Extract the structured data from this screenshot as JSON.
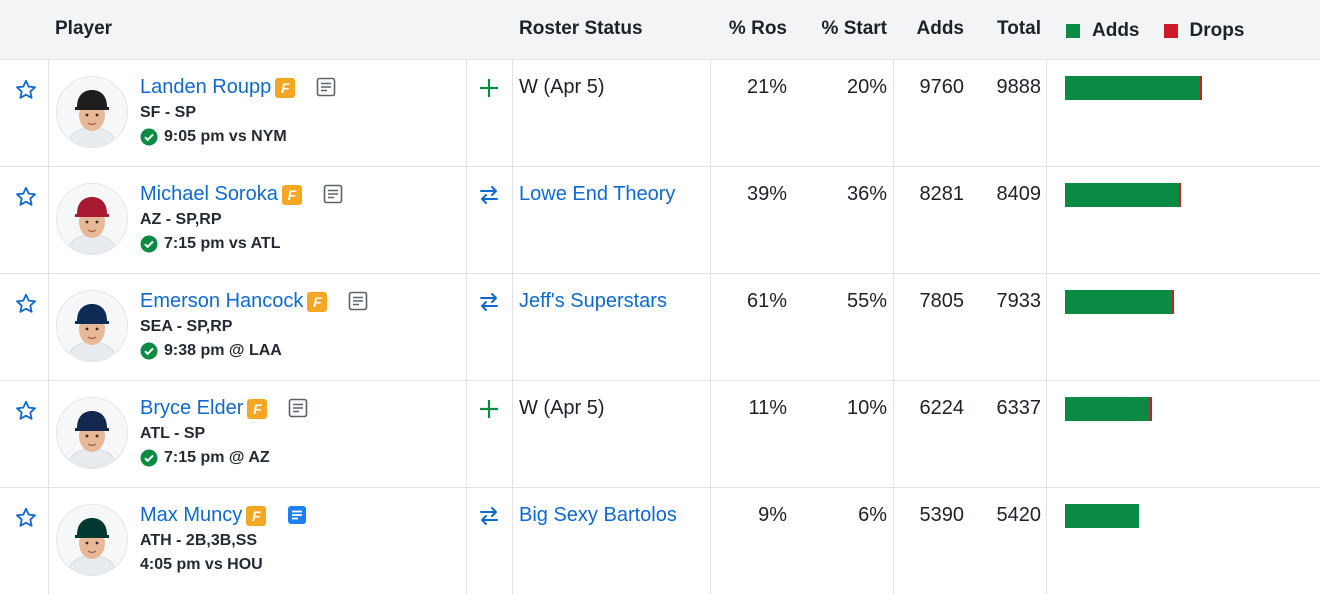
{
  "header": {
    "player": "Player",
    "roster_status": "Roster Status",
    "pct_ros": "% Ros",
    "pct_start": "% Start",
    "adds": "Adds",
    "total": "Total",
    "legend_adds": "Adds",
    "legend_drops": "Drops"
  },
  "colors": {
    "adds": "#0b8a44",
    "drops": "#d0192a",
    "link": "#0f69d0"
  },
  "rows": [
    {
      "name": "Landen Roupp",
      "team": "SF - SP",
      "game": "9:05 pm vs NYM",
      "game_check": true,
      "note_icon": "note-icon",
      "action": "add-icon",
      "status": "W (Apr 5)",
      "status_link": false,
      "ros": "21%",
      "start": "20%",
      "adds": "9760",
      "total": "9888",
      "add_fraction": 0.135,
      "drop_fraction": 0.0022,
      "cap": "SF"
    },
    {
      "name": "Michael Soroka",
      "team": "AZ - SP,RP",
      "game": "7:15 pm vs ATL",
      "game_check": true,
      "note_icon": "note-icon",
      "action": "trade-icon",
      "status": "Lowe End Theory",
      "status_link": true,
      "ros": "39%",
      "start": "36%",
      "adds": "8281",
      "total": "8409",
      "add_fraction": 0.114,
      "drop_fraction": 0.0022,
      "cap": "A"
    },
    {
      "name": "Emerson Hancock",
      "team": "SEA - SP,RP",
      "game": "9:38 pm @ LAA",
      "game_check": true,
      "note_icon": "note-icon",
      "action": "trade-icon",
      "status": "Jeff's Superstars",
      "status_link": true,
      "ros": "61%",
      "start": "55%",
      "adds": "7805",
      "total": "7933",
      "add_fraction": 0.107,
      "drop_fraction": 0.0022,
      "cap": "S"
    },
    {
      "name": "Bryce Elder",
      "team": "ATL - SP",
      "game": "7:15 pm @ AZ",
      "game_check": true,
      "note_icon": "note-icon",
      "action": "add-icon",
      "status": "W (Apr 5)",
      "status_link": false,
      "ros": "11%",
      "start": "10%",
      "adds": "6224",
      "total": "6337",
      "add_fraction": 0.085,
      "drop_fraction": 0.0018,
      "cap": "A"
    },
    {
      "name": "Max Muncy",
      "team": "ATH - 2B,3B,SS",
      "game": "4:05 pm vs HOU",
      "game_check": false,
      "note_icon": "note-new-icon",
      "action": "trade-icon",
      "status": "Big Sexy Bartolos",
      "status_link": true,
      "ros": "9%",
      "start": "6%",
      "adds": "5390",
      "total": "5420",
      "add_fraction": 0.074,
      "drop_fraction": 0.0,
      "cap": "A"
    }
  ]
}
